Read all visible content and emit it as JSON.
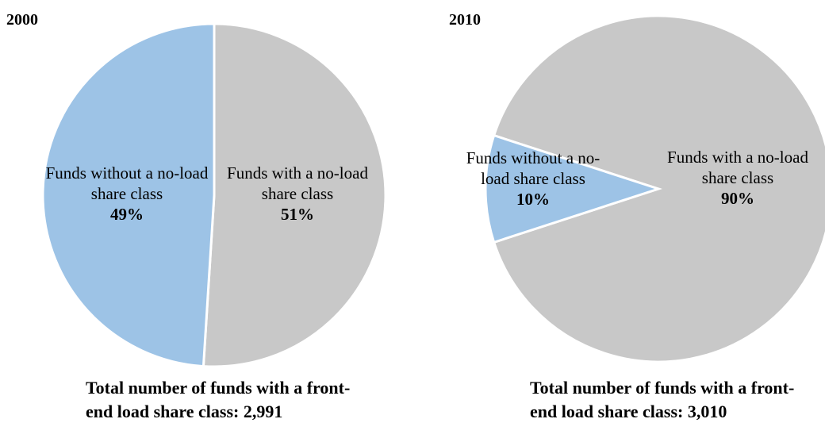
{
  "chart_data": [
    {
      "type": "pie",
      "title": "2000",
      "categories": [
        "Funds with a no-load share class",
        "Funds without a no-load share class"
      ],
      "values": [
        51,
        49
      ],
      "value_labels": [
        "51%",
        "49%"
      ],
      "colors": [
        "#c8c8c8",
        "#9dc3e6"
      ],
      "caption": "Total number of funds with a front-end load share class: 2,991"
    },
    {
      "type": "pie",
      "title": "2010",
      "categories": [
        "Funds with a no-load share class",
        "Funds without a no-load share class"
      ],
      "values": [
        90,
        10
      ],
      "value_labels": [
        "90%",
        "10%"
      ],
      "colors": [
        "#c8c8c8",
        "#9dc3e6"
      ],
      "caption": "Total number of funds with a front-end load share class: 3,010"
    }
  ]
}
